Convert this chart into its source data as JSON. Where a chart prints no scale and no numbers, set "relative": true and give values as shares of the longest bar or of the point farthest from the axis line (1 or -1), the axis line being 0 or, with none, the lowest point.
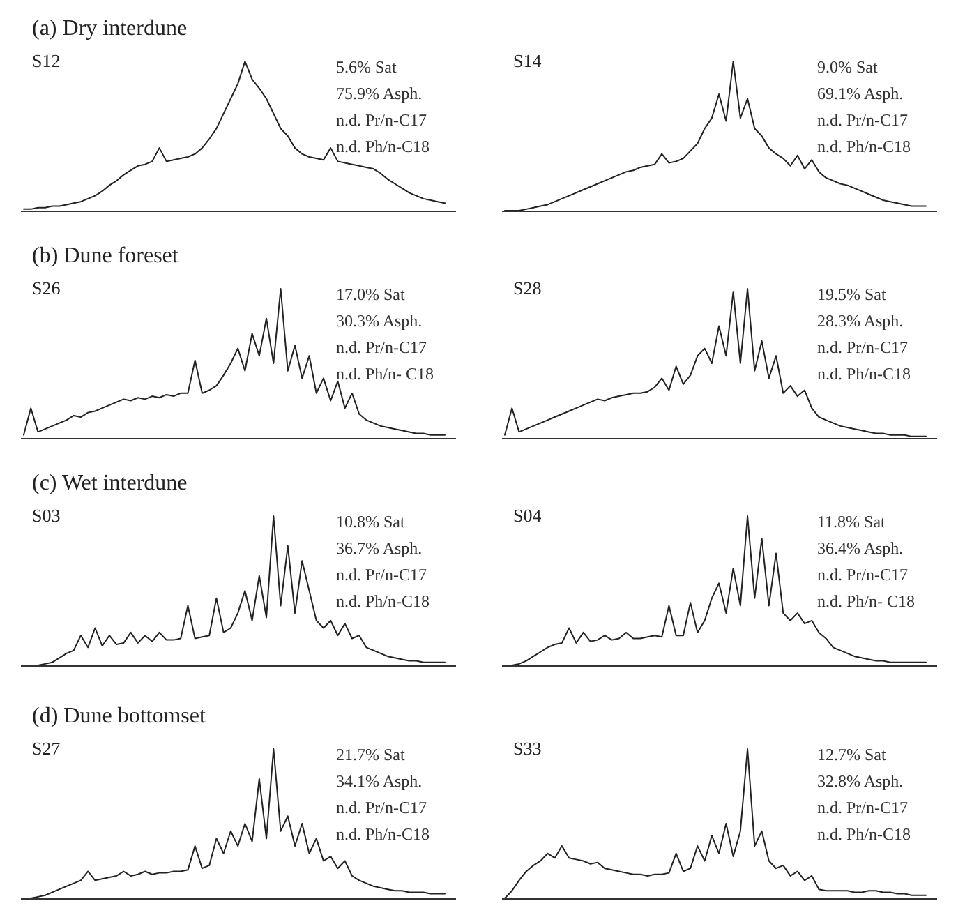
{
  "chart_data": [
    {
      "type": "line",
      "title": "(a) Dry interdune",
      "subtitle": "S12",
      "relative": true,
      "color": "#222222",
      "annotations": [
        "5.6% Sat",
        "75.9% Asph.",
        "n.d. Pr/n-C17",
        "n.d. Ph/n-C18"
      ],
      "categories": [
        null,
        null,
        null,
        null,
        null,
        null,
        null,
        null,
        null,
        null,
        null,
        null,
        null,
        null,
        null,
        null,
        null,
        null,
        null,
        null,
        null,
        null,
        null,
        null,
        null,
        null,
        null,
        null,
        null,
        null,
        null,
        null,
        null,
        null,
        null,
        null,
        null,
        null,
        null,
        null,
        null,
        null,
        null,
        null,
        null,
        null,
        null,
        null,
        null,
        null,
        null,
        null,
        null,
        null,
        null,
        null,
        null,
        null,
        null,
        null
      ],
      "values": [
        0.01,
        0.01,
        0.02,
        0.02,
        0.03,
        0.03,
        0.04,
        0.05,
        0.06,
        0.08,
        0.1,
        0.13,
        0.17,
        0.2,
        0.24,
        0.27,
        0.3,
        0.31,
        0.33,
        0.42,
        0.33,
        0.34,
        0.35,
        0.36,
        0.38,
        0.42,
        0.48,
        0.55,
        0.65,
        0.75,
        0.85,
        1.0,
        0.88,
        0.82,
        0.75,
        0.65,
        0.55,
        0.5,
        0.42,
        0.38,
        0.36,
        0.35,
        0.34,
        0.42,
        0.33,
        0.32,
        0.31,
        0.3,
        0.29,
        0.28,
        0.25,
        0.21,
        0.18,
        0.15,
        0.12,
        0.1,
        0.08,
        0.07,
        0.06,
        0.05
      ]
    },
    {
      "type": "line",
      "subtitle": "S14",
      "relative": true,
      "color": "#222222",
      "annotations": [
        "9.0% Sat",
        "69.1% Asph.",
        "n.d. Pr/n-C17",
        "n.d. Ph/n-C18"
      ],
      "categories": [
        null,
        null,
        null,
        null,
        null,
        null,
        null,
        null,
        null,
        null,
        null,
        null,
        null,
        null,
        null,
        null,
        null,
        null,
        null,
        null,
        null,
        null,
        null,
        null,
        null,
        null,
        null,
        null,
        null,
        null,
        null,
        null,
        null,
        null,
        null,
        null,
        null,
        null,
        null,
        null,
        null,
        null,
        null,
        null,
        null,
        null,
        null,
        null,
        null,
        null,
        null,
        null,
        null,
        null,
        null,
        null,
        null,
        null,
        null,
        null
      ],
      "values": [
        0,
        0,
        0,
        0.01,
        0.02,
        0.03,
        0.04,
        0.06,
        0.08,
        0.1,
        0.12,
        0.14,
        0.16,
        0.18,
        0.2,
        0.22,
        0.24,
        0.26,
        0.27,
        0.29,
        0.3,
        0.31,
        0.38,
        0.32,
        0.33,
        0.35,
        0.4,
        0.45,
        0.55,
        0.62,
        0.78,
        0.6,
        1.0,
        0.62,
        0.75,
        0.55,
        0.5,
        0.42,
        0.38,
        0.35,
        0.3,
        0.37,
        0.28,
        0.34,
        0.26,
        0.22,
        0.2,
        0.18,
        0.17,
        0.15,
        0.13,
        0.11,
        0.09,
        0.07,
        0.06,
        0.05,
        0.04,
        0.03,
        0.03,
        0.03
      ]
    },
    {
      "type": "line",
      "title": "(b) Dune foreset",
      "subtitle": "S26",
      "relative": true,
      "color": "#222222",
      "annotations": [
        "17.0% Sat",
        "30.3% Asph.",
        "n.d. Pr/n-C17",
        "n.d. Ph/n- C18"
      ],
      "categories": [
        null,
        null,
        null,
        null,
        null,
        null,
        null,
        null,
        null,
        null,
        null,
        null,
        null,
        null,
        null,
        null,
        null,
        null,
        null,
        null,
        null,
        null,
        null,
        null,
        null,
        null,
        null,
        null,
        null,
        null,
        null,
        null,
        null,
        null,
        null,
        null,
        null,
        null,
        null,
        null,
        null,
        null,
        null,
        null,
        null,
        null,
        null,
        null,
        null,
        null,
        null,
        null,
        null,
        null,
        null,
        null,
        null,
        null,
        null,
        null
      ],
      "values": [
        0.02,
        0.2,
        0.04,
        0.06,
        0.08,
        0.1,
        0.12,
        0.15,
        0.14,
        0.17,
        0.18,
        0.2,
        0.22,
        0.24,
        0.26,
        0.25,
        0.27,
        0.26,
        0.28,
        0.27,
        0.29,
        0.28,
        0.3,
        0.3,
        0.52,
        0.3,
        0.32,
        0.35,
        0.42,
        0.5,
        0.6,
        0.45,
        0.7,
        0.55,
        0.8,
        0.5,
        1.0,
        0.45,
        0.62,
        0.4,
        0.55,
        0.3,
        0.4,
        0.25,
        0.38,
        0.2,
        0.3,
        0.16,
        0.12,
        0.1,
        0.08,
        0.07,
        0.06,
        0.05,
        0.04,
        0.03,
        0.03,
        0.02,
        0.02,
        0.02
      ]
    },
    {
      "type": "line",
      "subtitle": "S28",
      "relative": true,
      "color": "#222222",
      "annotations": [
        "19.5% Sat",
        "28.3% Asph.",
        "n.d. Pr/n-C17",
        "n.d. Ph/n-C18"
      ],
      "categories": [
        null,
        null,
        null,
        null,
        null,
        null,
        null,
        null,
        null,
        null,
        null,
        null,
        null,
        null,
        null,
        null,
        null,
        null,
        null,
        null,
        null,
        null,
        null,
        null,
        null,
        null,
        null,
        null,
        null,
        null,
        null,
        null,
        null,
        null,
        null,
        null,
        null,
        null,
        null,
        null,
        null,
        null,
        null,
        null,
        null,
        null,
        null,
        null,
        null,
        null,
        null,
        null,
        null,
        null,
        null,
        null,
        null,
        null,
        null,
        null
      ],
      "values": [
        0.02,
        0.2,
        0.04,
        0.06,
        0.08,
        0.1,
        0.12,
        0.14,
        0.16,
        0.18,
        0.2,
        0.22,
        0.24,
        0.26,
        0.25,
        0.27,
        0.28,
        0.29,
        0.3,
        0.3,
        0.31,
        0.34,
        0.4,
        0.32,
        0.48,
        0.36,
        0.42,
        0.55,
        0.6,
        0.5,
        0.75,
        0.55,
        0.98,
        0.5,
        1.0,
        0.45,
        0.65,
        0.4,
        0.55,
        0.3,
        0.35,
        0.28,
        0.32,
        0.2,
        0.14,
        0.12,
        0.1,
        0.08,
        0.07,
        0.06,
        0.05,
        0.04,
        0.03,
        0.03,
        0.02,
        0.02,
        0.02,
        0.01,
        0.01,
        0.01
      ]
    },
    {
      "type": "line",
      "title": "(c) Wet interdune",
      "subtitle": "S03",
      "relative": true,
      "color": "#222222",
      "annotations": [
        "10.8% Sat",
        "36.7% Asph.",
        "n.d. Pr/n-C17",
        "n.d. Ph/n-C18"
      ],
      "categories": [
        null,
        null,
        null,
        null,
        null,
        null,
        null,
        null,
        null,
        null,
        null,
        null,
        null,
        null,
        null,
        null,
        null,
        null,
        null,
        null,
        null,
        null,
        null,
        null,
        null,
        null,
        null,
        null,
        null,
        null,
        null,
        null,
        null,
        null,
        null,
        null,
        null,
        null,
        null,
        null,
        null,
        null,
        null,
        null,
        null,
        null,
        null,
        null,
        null,
        null,
        null,
        null,
        null,
        null,
        null,
        null,
        null,
        null,
        null,
        null
      ],
      "values": [
        0,
        0,
        0,
        0.01,
        0.02,
        0.05,
        0.08,
        0.1,
        0.2,
        0.12,
        0.25,
        0.13,
        0.2,
        0.14,
        0.15,
        0.22,
        0.15,
        0.2,
        0.16,
        0.22,
        0.17,
        0.17,
        0.18,
        0.4,
        0.18,
        0.19,
        0.2,
        0.45,
        0.22,
        0.25,
        0.35,
        0.5,
        0.3,
        0.6,
        0.32,
        1.0,
        0.4,
        0.8,
        0.35,
        0.7,
        0.5,
        0.3,
        0.25,
        0.3,
        0.2,
        0.28,
        0.18,
        0.2,
        0.12,
        0.1,
        0.08,
        0.06,
        0.05,
        0.04,
        0.03,
        0.03,
        0.02,
        0.02,
        0.02,
        0.02
      ]
    },
    {
      "type": "line",
      "subtitle": "S04",
      "relative": true,
      "color": "#222222",
      "annotations": [
        "11.8% Sat",
        "36.4% Asph.",
        "n.d. Pr/n-C17",
        "n.d. Ph/n- C18"
      ],
      "categories": [
        null,
        null,
        null,
        null,
        null,
        null,
        null,
        null,
        null,
        null,
        null,
        null,
        null,
        null,
        null,
        null,
        null,
        null,
        null,
        null,
        null,
        null,
        null,
        null,
        null,
        null,
        null,
        null,
        null,
        null,
        null,
        null,
        null,
        null,
        null,
        null,
        null,
        null,
        null,
        null,
        null,
        null,
        null,
        null,
        null,
        null,
        null,
        null,
        null,
        null,
        null,
        null,
        null,
        null,
        null,
        null,
        null,
        null,
        null,
        null
      ],
      "values": [
        0,
        0,
        0.01,
        0.03,
        0.06,
        0.09,
        0.12,
        0.14,
        0.15,
        0.25,
        0.15,
        0.22,
        0.16,
        0.17,
        0.2,
        0.17,
        0.18,
        0.22,
        0.18,
        0.18,
        0.19,
        0.2,
        0.19,
        0.4,
        0.2,
        0.2,
        0.42,
        0.22,
        0.3,
        0.45,
        0.55,
        0.35,
        0.65,
        0.4,
        1.0,
        0.45,
        0.85,
        0.4,
        0.75,
        0.35,
        0.3,
        0.35,
        0.28,
        0.3,
        0.22,
        0.18,
        0.12,
        0.1,
        0.08,
        0.06,
        0.05,
        0.04,
        0.03,
        0.03,
        0.02,
        0.02,
        0.02,
        0.02,
        0.02,
        0.02
      ]
    },
    {
      "type": "line",
      "title": "(d) Dune bottomset",
      "subtitle": "S27",
      "relative": true,
      "color": "#222222",
      "annotations": [
        "21.7% Sat",
        "34.1% Asph.",
        "n.d. Pr/n-C17",
        "n.d. Ph/n-C18"
      ],
      "categories": [
        null,
        null,
        null,
        null,
        null,
        null,
        null,
        null,
        null,
        null,
        null,
        null,
        null,
        null,
        null,
        null,
        null,
        null,
        null,
        null,
        null,
        null,
        null,
        null,
        null,
        null,
        null,
        null,
        null,
        null,
        null,
        null,
        null,
        null,
        null,
        null,
        null,
        null,
        null,
        null,
        null,
        null,
        null,
        null,
        null,
        null,
        null,
        null,
        null,
        null,
        null,
        null,
        null,
        null,
        null,
        null,
        null,
        null,
        null,
        null
      ],
      "values": [
        0,
        0,
        0.01,
        0.02,
        0.04,
        0.06,
        0.08,
        0.1,
        0.12,
        0.18,
        0.12,
        0.13,
        0.14,
        0.15,
        0.18,
        0.15,
        0.16,
        0.18,
        0.16,
        0.17,
        0.17,
        0.18,
        0.18,
        0.19,
        0.35,
        0.2,
        0.22,
        0.4,
        0.3,
        0.45,
        0.35,
        0.5,
        0.38,
        0.8,
        0.4,
        1.0,
        0.45,
        0.55,
        0.35,
        0.5,
        0.3,
        0.4,
        0.25,
        0.28,
        0.2,
        0.25,
        0.15,
        0.12,
        0.1,
        0.08,
        0.07,
        0.06,
        0.05,
        0.05,
        0.04,
        0.04,
        0.04,
        0.03,
        0.03,
        0.03
      ]
    },
    {
      "type": "line",
      "subtitle": "S33",
      "relative": true,
      "color": "#222222",
      "annotations": [
        "12.7% Sat",
        "32.8% Asph.",
        "n.d. Pr/n-C17",
        "n.d. Ph/n-C18"
      ],
      "categories": [
        null,
        null,
        null,
        null,
        null,
        null,
        null,
        null,
        null,
        null,
        null,
        null,
        null,
        null,
        null,
        null,
        null,
        null,
        null,
        null,
        null,
        null,
        null,
        null,
        null,
        null,
        null,
        null,
        null,
        null,
        null,
        null,
        null,
        null,
        null,
        null,
        null,
        null,
        null,
        null,
        null,
        null,
        null,
        null,
        null,
        null,
        null,
        null,
        null,
        null,
        null,
        null,
        null,
        null,
        null,
        null,
        null,
        null,
        null,
        null
      ],
      "values": [
        0,
        0.05,
        0.12,
        0.18,
        0.22,
        0.25,
        0.3,
        0.27,
        0.35,
        0.27,
        0.26,
        0.25,
        0.23,
        0.24,
        0.2,
        0.19,
        0.18,
        0.17,
        0.16,
        0.16,
        0.15,
        0.16,
        0.16,
        0.17,
        0.3,
        0.18,
        0.2,
        0.35,
        0.25,
        0.42,
        0.3,
        0.5,
        0.28,
        0.45,
        1.0,
        0.35,
        0.45,
        0.25,
        0.2,
        0.22,
        0.15,
        0.18,
        0.12,
        0.15,
        0.06,
        0.05,
        0.05,
        0.05,
        0.05,
        0.04,
        0.04,
        0.05,
        0.05,
        0.04,
        0.04,
        0.03,
        0.03,
        0.02,
        0.02,
        0.02
      ]
    }
  ]
}
